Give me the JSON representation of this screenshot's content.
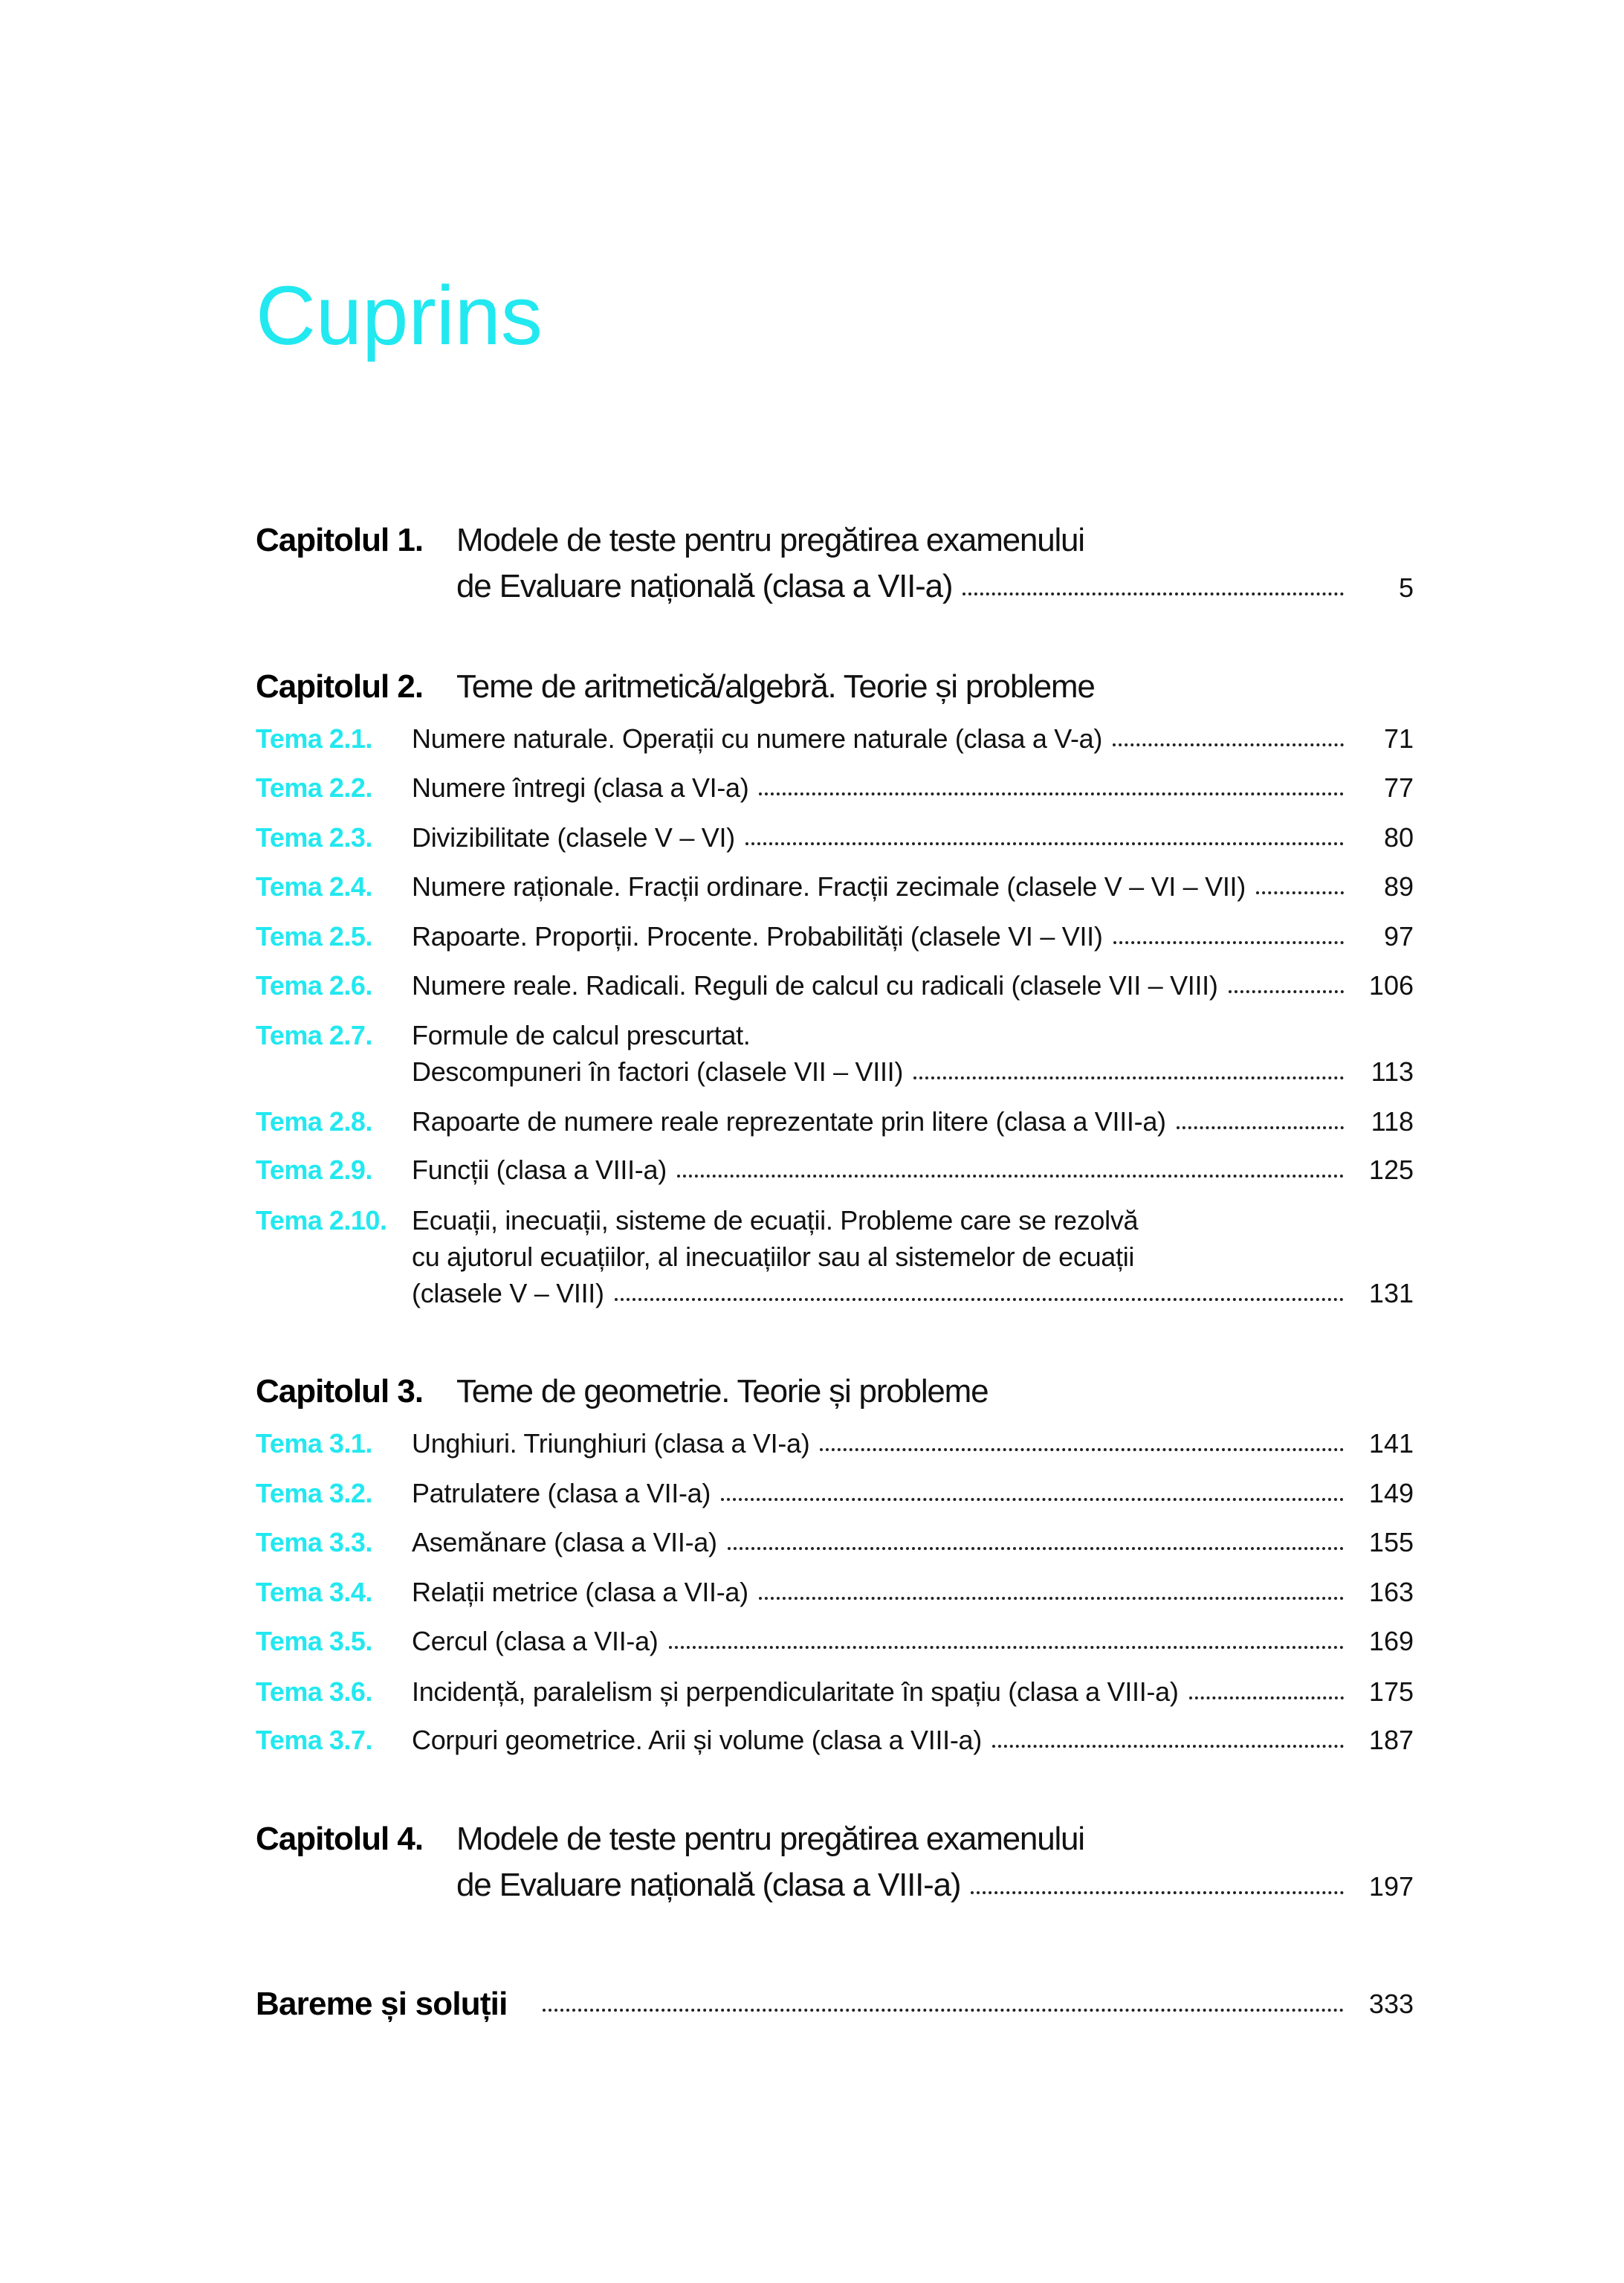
{
  "title": "Cuprins",
  "colors": {
    "accent": "#22e8f0",
    "text": "#111111"
  },
  "chapters": [
    {
      "label": "Capitolul 1.",
      "lines": [
        "Modele de teste pentru pregătirea examenului",
        "de Evaluare națională (clasa a VII-a)"
      ],
      "page": "5"
    },
    {
      "label": "Capitolul 2.",
      "lines": [
        "Teme de aritmetică/algebră. Teorie și probleme"
      ],
      "topics": [
        {
          "label": "Tema 2.1.",
          "lines": [
            "Numere naturale. Operații cu numere naturale (clasa a V-a)"
          ],
          "page": "71"
        },
        {
          "label": "Tema 2.2.",
          "lines": [
            "Numere întregi (clasa a VI-a)"
          ],
          "page": "77"
        },
        {
          "label": "Tema 2.3.",
          "lines": [
            "Divizibilitate (clasele V – VI)"
          ],
          "page": "80"
        },
        {
          "label": "Tema 2.4.",
          "lines": [
            "Numere raționale. Fracții ordinare. Fracții zecimale (clasele V – VI – VII)"
          ],
          "page": "89"
        },
        {
          "label": "Tema 2.5.",
          "lines": [
            "Rapoarte. Proporții. Procente. Probabilități (clasele VI – VII)"
          ],
          "page": "97"
        },
        {
          "label": "Tema 2.6.",
          "lines": [
            "Numere reale. Radicali. Reguli de calcul cu radicali (clasele VII – VIII)"
          ],
          "page": "106"
        },
        {
          "label": "Tema 2.7.",
          "lines": [
            "Formule de calcul prescurtat.",
            "Descompuneri în factori (clasele VII – VIII)"
          ],
          "page": "113"
        },
        {
          "label": "Tema 2.8.",
          "lines": [
            "Rapoarte de numere reale reprezentate prin litere (clasa a VIII-a)"
          ],
          "page": "118"
        },
        {
          "label": "Tema 2.9.",
          "lines": [
            "Funcții (clasa a VIII-a)"
          ],
          "page": "125"
        },
        {
          "label": "Tema 2.10.",
          "lines": [
            "Ecuații, inecuații, sisteme de ecuații. Probleme care se rezolvă",
            "cu ajutorul ecuațiilor, al inecuațiilor sau al sistemelor de ecuații",
            "(clasele V – VIII)"
          ],
          "page": "131"
        }
      ]
    },
    {
      "label": "Capitolul 3.",
      "lines": [
        "Teme de geometrie. Teorie și probleme"
      ],
      "topics": [
        {
          "label": "Tema 3.1.",
          "lines": [
            "Unghiuri. Triunghiuri (clasa a VI-a)"
          ],
          "page": "141"
        },
        {
          "label": "Tema 3.2.",
          "lines": [
            "Patrulatere (clasa a VII-a)"
          ],
          "page": "149"
        },
        {
          "label": "Tema 3.3.",
          "lines": [
            "Asemănare (clasa a VII-a)"
          ],
          "page": "155"
        },
        {
          "label": "Tema 3.4.",
          "lines": [
            "Relații metrice (clasa a VII-a)"
          ],
          "page": "163"
        },
        {
          "label": "Tema 3.5.",
          "lines": [
            "Cercul (clasa a VII-a)"
          ],
          "page": "169"
        },
        {
          "label": "Tema 3.6.",
          "lines": [
            "Incidență, paralelism și perpendicularitate în spațiu (clasa a VIII-a)"
          ],
          "page": "175"
        },
        {
          "label": "Tema 3.7.",
          "lines": [
            "Corpuri geometrice. Arii și volume (clasa a VIII-a)"
          ],
          "page": "187"
        }
      ]
    },
    {
      "label": "Capitolul 4.",
      "lines": [
        "Modele de teste pentru pregătirea examenului",
        "de Evaluare națională (clasa a VIII-a)"
      ],
      "page": "197"
    }
  ],
  "solutions": {
    "label": "Bareme și soluții",
    "page": "333"
  }
}
